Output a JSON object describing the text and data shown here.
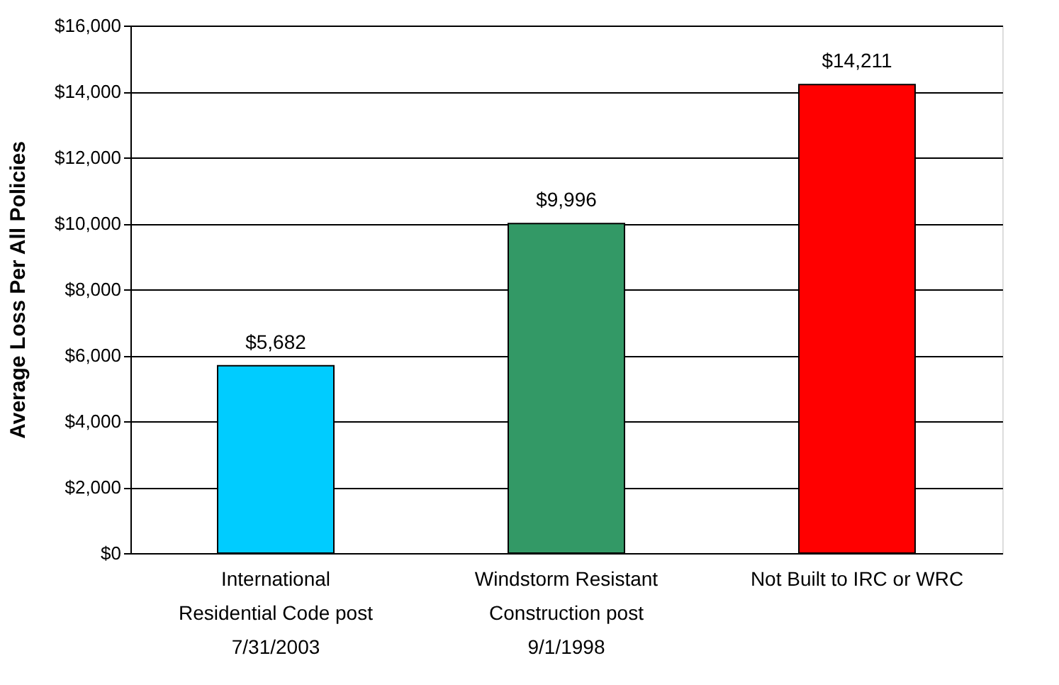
{
  "chart_data": {
    "type": "bar",
    "ylabel": "Average Loss Per All Policies",
    "categories": [
      "International Residential Code post 7/31/2003",
      "Windstorm Resistant Construction post 9/1/1998",
      "Not Built to IRC or WRC"
    ],
    "values": [
      5682,
      9996,
      14211
    ],
    "colors": [
      "#00ccff",
      "#339966",
      "#ff0000"
    ],
    "value_labels": [
      "$5,682",
      "$9,996",
      "$14,211"
    ],
    "ylim": [
      0,
      16000
    ],
    "yticks": [
      {
        "value": 0,
        "label": "$0"
      },
      {
        "value": 2000,
        "label": "$2,000"
      },
      {
        "value": 4000,
        "label": "$4,000"
      },
      {
        "value": 6000,
        "label": "$6,000"
      },
      {
        "value": 8000,
        "label": "$8,000"
      },
      {
        "value": 10000,
        "label": "$10,000"
      },
      {
        "value": 12000,
        "label": "$12,000"
      },
      {
        "value": 14000,
        "label": "$14,000"
      },
      {
        "value": 16000,
        "label": "$16,000"
      }
    ],
    "grid": "y"
  }
}
